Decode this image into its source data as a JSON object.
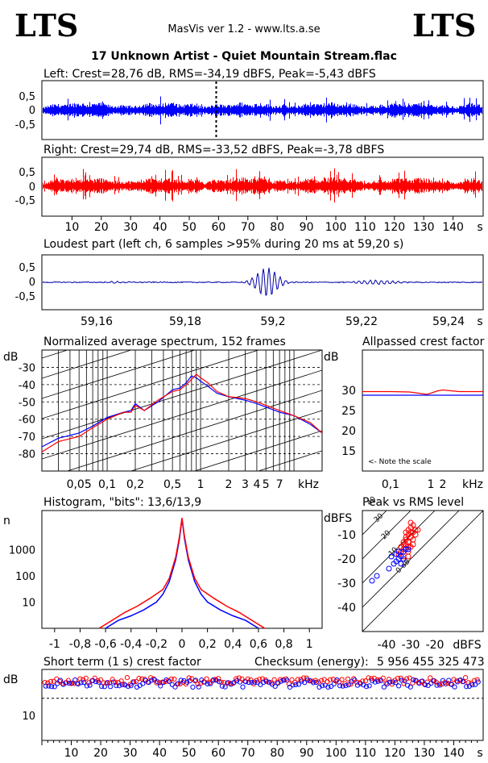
{
  "header": {
    "logo_left": "LTS",
    "logo_right": "LTS",
    "app_title": "MasVis ver 1.2 - www.lts.a.se",
    "track_title": "17 Unknown Artist - Quiet Mountain Stream.flac"
  },
  "chart_data": [
    {
      "id": "left-waveform",
      "type": "line",
      "title": "Left: Crest=28,76 dB, RMS=-34,19 dBFS, Peak=-5,43 dBFS",
      "yticks": [
        "0,5",
        "0",
        "-0,5"
      ],
      "ylim": [
        -0.8,
        0.8
      ],
      "xlim": [
        0,
        150
      ],
      "marker_x": 59.2,
      "color": "#0000ff"
    },
    {
      "id": "right-waveform",
      "type": "line",
      "title": "Right: Crest=29,74 dB, RMS=-33,52 dBFS, Peak=-3,78 dBFS",
      "yticks": [
        "0,5",
        "0",
        "-0,5"
      ],
      "ylim": [
        -0.8,
        0.8
      ],
      "xlim": [
        0,
        150
      ],
      "xticks": [
        "10",
        "20",
        "30",
        "40",
        "50",
        "60",
        "70",
        "80",
        "90",
        "100",
        "110",
        "120",
        "130",
        "140"
      ],
      "xunit": "s",
      "color": "#ff0000"
    },
    {
      "id": "loudest-part",
      "type": "line",
      "title": "Loudest part (left  ch, 6 samples >95% during 20 ms at 59,20 s)",
      "yticks": [
        "0,5",
        "0",
        "-0,5"
      ],
      "xticks": [
        "59,16",
        "59,18",
        "59,2",
        "59,22",
        "59,24"
      ],
      "xunit": "s",
      "xlim": [
        59.15,
        59.25
      ],
      "color": "#0000aa"
    },
    {
      "id": "avg-spectrum",
      "type": "line",
      "title": "Normalized average spectrum, 152 frames",
      "ylabel": "dB",
      "yticks": [
        "-30",
        "-40",
        "-50",
        "-60",
        "-70",
        "-80"
      ],
      "xticks": [
        "0,05",
        "0,1",
        "0,2",
        "0,5",
        "1",
        "2",
        "3",
        "4",
        "5",
        "7"
      ],
      "xunit": "kHz",
      "ylim": [
        -90,
        -20
      ],
      "series": [
        {
          "color": "#0000ff",
          "x": [
            0.02,
            0.03,
            0.05,
            0.07,
            0.1,
            0.15,
            0.18,
            0.2,
            0.25,
            0.35,
            0.5,
            0.6,
            0.7,
            0.8,
            0.9,
            1.0,
            1.2,
            1.5,
            2,
            3,
            4,
            5,
            7,
            10,
            15,
            20
          ],
          "y": [
            -76,
            -71,
            -68,
            -64,
            -59,
            -56,
            -55,
            -51,
            -55,
            -50,
            -43,
            -42,
            -39,
            -35,
            -36,
            -38,
            -41,
            -45,
            -47,
            -49,
            -51,
            -53,
            -56,
            -58,
            -63,
            -68
          ]
        },
        {
          "color": "#ff0000",
          "x": [
            0.02,
            0.03,
            0.05,
            0.07,
            0.1,
            0.15,
            0.18,
            0.2,
            0.25,
            0.35,
            0.5,
            0.6,
            0.7,
            0.8,
            0.9,
            1.0,
            1.2,
            1.5,
            2,
            3,
            4,
            5,
            7,
            10,
            15,
            20
          ],
          "y": [
            -79,
            -73,
            -70,
            -65,
            -60,
            -56,
            -56,
            -52,
            -55,
            -49,
            -44,
            -43,
            -40,
            -37,
            -34,
            -36,
            -39,
            -44,
            -47,
            -48,
            -50,
            -52,
            -55,
            -58,
            -62,
            -68
          ]
        }
      ]
    },
    {
      "id": "allpassed-crest",
      "type": "line",
      "title": "Allpassed crest factor",
      "ylabel": "dB",
      "yticks": [
        "30",
        "25",
        "20",
        "15"
      ],
      "xticks": [
        "0,1",
        "1",
        "2"
      ],
      "xunit": "kHz",
      "ylim": [
        10,
        40
      ],
      "annotation": "<- Note the scale",
      "series": [
        {
          "color": "#ff0000",
          "x": [
            0.02,
            0.1,
            0.3,
            0.5,
            0.8,
            1,
            1.5,
            2,
            5,
            10,
            20
          ],
          "y": [
            29.7,
            29.7,
            29.6,
            29.3,
            29.0,
            29.3,
            29.9,
            30.1,
            29.7,
            29.7,
            29.7
          ]
        },
        {
          "color": "#0000ff",
          "x": [
            0.02,
            0.1,
            0.3,
            0.5,
            0.8,
            1,
            1.5,
            2,
            5,
            10,
            20
          ],
          "y": [
            28.8,
            28.8,
            28.8,
            28.8,
            28.8,
            28.8,
            28.8,
            28.8,
            28.8,
            28.8,
            28.8
          ]
        }
      ]
    },
    {
      "id": "histogram",
      "type": "bar",
      "title": "Histogram, \"bits\": 13,6/13,9",
      "ylabel": "n",
      "yticks": [
        "1000",
        "100",
        "10"
      ],
      "xticks": [
        "-1",
        "-0,8",
        "-0,6",
        "-0,4",
        "-0,2",
        "0",
        "0,2",
        "0,4",
        "0,6",
        "0,8",
        "1"
      ],
      "xlim": [
        -1.1,
        1.1
      ],
      "series": [
        {
          "color": "#0000ff",
          "x": [
            -0.6,
            -0.5,
            -0.4,
            -0.3,
            -0.2,
            -0.15,
            -0.1,
            -0.05,
            -0.02,
            0,
            0.02,
            0.05,
            0.1,
            0.15,
            0.2,
            0.3,
            0.4,
            0.5,
            0.6
          ],
          "y": [
            1,
            2,
            3,
            5,
            10,
            20,
            60,
            400,
            2500,
            15000,
            2500,
            400,
            60,
            20,
            10,
            5,
            3,
            2,
            1
          ]
        },
        {
          "color": "#ff0000",
          "x": [
            -0.65,
            -0.55,
            -0.45,
            -0.35,
            -0.25,
            -0.15,
            -0.1,
            -0.05,
            -0.02,
            0,
            0.02,
            0.05,
            0.1,
            0.15,
            0.25,
            0.35,
            0.45,
            0.55,
            0.65
          ],
          "y": [
            1,
            2,
            4,
            7,
            14,
            30,
            80,
            500,
            3000,
            16000,
            3000,
            500,
            80,
            30,
            14,
            7,
            4,
            2,
            1
          ]
        }
      ]
    },
    {
      "id": "peak-vs-rms",
      "type": "scatter",
      "title": "Peak vs RMS level",
      "ylabel": "dBFS",
      "yticks": [
        "-10",
        "-20",
        "-30",
        "-40"
      ],
      "xticks": [
        "-40",
        "-30",
        "-20"
      ],
      "xunit": "dBFS",
      "diagonal_labels": [
        "40",
        "30",
        "20",
        "10",
        "0 dB"
      ],
      "xlim": [
        -50,
        0
      ],
      "ylim": [
        -50,
        0
      ],
      "series": [
        {
          "color": "#ff0000",
          "points": [
            [
              -33,
              -14
            ],
            [
              -32,
              -12
            ],
            [
              -31,
              -10
            ],
            [
              -30,
              -9
            ],
            [
              -30,
              -7
            ],
            [
              -29,
              -6
            ],
            [
              -31,
              -8
            ],
            [
              -32,
              -11
            ],
            [
              -33,
              -16
            ],
            [
              -34,
              -17
            ],
            [
              -31,
              -13
            ],
            [
              -30,
              -11
            ],
            [
              -29,
              -9
            ],
            [
              -28,
              -8
            ],
            [
              -32,
              -14
            ],
            [
              -33,
              -13
            ],
            [
              -34,
              -15
            ],
            [
              -30,
              -15
            ],
            [
              -31,
              -17
            ],
            [
              -29,
              -12
            ],
            [
              -28,
              -10
            ],
            [
              -31,
              -19
            ],
            [
              -32,
              -9
            ],
            [
              -30,
              -5
            ],
            [
              -33,
              -19
            ],
            [
              -35,
              -18
            ],
            [
              -29,
              -14
            ],
            [
              -27,
              -8
            ],
            [
              -31,
              -15
            ]
          ]
        },
        {
          "color": "#0000ff",
          "points": [
            [
              -33,
              -17
            ],
            [
              -35,
              -20
            ],
            [
              -37,
              -22
            ],
            [
              -34,
              -19
            ],
            [
              -36,
              -21
            ],
            [
              -39,
              -24
            ],
            [
              -44,
              -27
            ],
            [
              -46,
              -29
            ],
            [
              -32,
              -16
            ],
            [
              -33,
              -20
            ],
            [
              -38,
              -19
            ],
            [
              -35,
              -17
            ],
            [
              -31,
              -16
            ],
            [
              -34,
              -22
            ],
            [
              -36,
              -18
            ]
          ]
        }
      ]
    },
    {
      "id": "short-term-crest",
      "type": "scatter",
      "title": "Short term (1 s) crest factor",
      "ylabel": "dB",
      "ytick": "10",
      "xticks": [
        "10",
        "20",
        "30",
        "40",
        "50",
        "60",
        "70",
        "80",
        "90",
        "100",
        "110",
        "120",
        "130",
        "140"
      ],
      "xunit": "s",
      "xlim": [
        0,
        150
      ],
      "ylim": [
        2,
        30
      ],
      "series": [
        {
          "color": "#ff0000",
          "name": ""
        },
        {
          "color": "#0000ff",
          "name": ""
        }
      ]
    }
  ],
  "checksum": {
    "label": "Checksum (energy):",
    "value": "5 956 455 325 473"
  }
}
